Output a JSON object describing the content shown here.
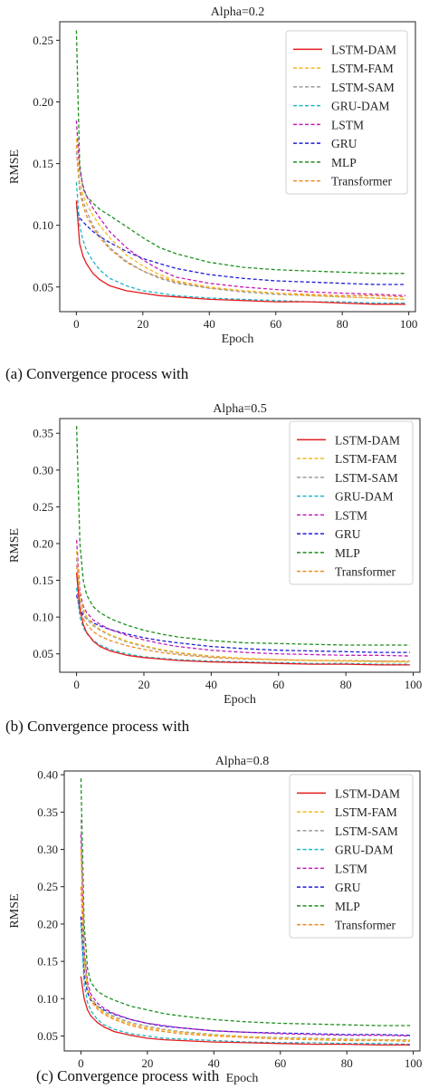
{
  "series_styles": [
    {
      "name": "LSTM-DAM",
      "color": "#e41a1c",
      "dash": "solid"
    },
    {
      "name": "LSTM-FAM",
      "color": "#f5b81b",
      "dash": "dashed"
    },
    {
      "name": "LSTM-SAM",
      "color": "#9c9c9c",
      "dash": "dashed"
    },
    {
      "name": "GRU-DAM",
      "color": "#1bb7c9",
      "dash": "dashed"
    },
    {
      "name": "LSTM",
      "color": "#c21cb8",
      "dash": "dashed"
    },
    {
      "name": "GRU",
      "color": "#1f1fd6",
      "dash": "dashed"
    },
    {
      "name": "MLP",
      "color": "#1f8f1f",
      "dash": "dashed"
    },
    {
      "name": "Transformer",
      "color": "#f08a24",
      "dash": "dashed"
    }
  ],
  "panels": [
    {
      "caption": "(a) Convergence process with"
    },
    {
      "caption": "(b) Convergence process with"
    },
    {
      "caption": "(c) Convergence process with"
    }
  ],
  "chart_data": [
    {
      "type": "line",
      "title": "Alpha=0.2",
      "xlabel": "Epoch",
      "ylabel": "RMSE",
      "xlim": [
        -5,
        102
      ],
      "ylim": [
        0.03,
        0.265
      ],
      "xticks": [
        0,
        20,
        40,
        60,
        80,
        100
      ],
      "yticks": [
        0.05,
        0.1,
        0.15,
        0.2,
        0.25
      ],
      "ytick_labels": [
        "0.05",
        "0.10",
        "0.15",
        "0.20",
        "0.25"
      ],
      "legend_position": "top-right",
      "grid": false,
      "x": [
        0,
        1,
        2,
        3,
        5,
        7,
        10,
        15,
        20,
        25,
        30,
        40,
        50,
        60,
        70,
        80,
        90,
        99
      ],
      "series": [
        {
          "name": "LSTM-DAM",
          "values": [
            0.12,
            0.085,
            0.075,
            0.069,
            0.061,
            0.056,
            0.051,
            0.047,
            0.045,
            0.043,
            0.042,
            0.04,
            0.039,
            0.038,
            0.038,
            0.037,
            0.036,
            0.036
          ]
        },
        {
          "name": "LSTM-FAM",
          "values": [
            0.17,
            0.135,
            0.125,
            0.118,
            0.108,
            0.1,
            0.09,
            0.076,
            0.067,
            0.06,
            0.055,
            0.05,
            0.047,
            0.045,
            0.043,
            0.042,
            0.041,
            0.04
          ]
        },
        {
          "name": "LSTM-SAM",
          "values": [
            0.16,
            0.13,
            0.12,
            0.112,
            0.1,
            0.092,
            0.082,
            0.071,
            0.063,
            0.057,
            0.053,
            0.049,
            0.046,
            0.044,
            0.043,
            0.042,
            0.041,
            0.04
          ]
        },
        {
          "name": "GRU-DAM",
          "values": [
            0.135,
            0.1,
            0.088,
            0.08,
            0.071,
            0.064,
            0.057,
            0.051,
            0.047,
            0.045,
            0.043,
            0.041,
            0.04,
            0.039,
            0.038,
            0.038,
            0.037,
            0.037
          ]
        },
        {
          "name": "LSTM",
          "values": [
            0.185,
            0.145,
            0.132,
            0.124,
            0.114,
            0.106,
            0.095,
            0.082,
            0.072,
            0.064,
            0.058,
            0.053,
            0.05,
            0.048,
            0.046,
            0.045,
            0.044,
            0.043
          ]
        },
        {
          "name": "GRU",
          "values": [
            0.115,
            0.106,
            0.103,
            0.1,
            0.095,
            0.091,
            0.086,
            0.079,
            0.073,
            0.069,
            0.065,
            0.06,
            0.057,
            0.055,
            0.054,
            0.053,
            0.052,
            0.052
          ]
        },
        {
          "name": "MLP",
          "values": [
            0.258,
            0.15,
            0.13,
            0.124,
            0.118,
            0.113,
            0.108,
            0.099,
            0.09,
            0.082,
            0.077,
            0.07,
            0.066,
            0.064,
            0.063,
            0.062,
            0.061,
            0.061
          ]
        },
        {
          "name": "Transformer",
          "values": [
            0.165,
            0.128,
            0.116,
            0.108,
            0.098,
            0.09,
            0.081,
            0.07,
            0.063,
            0.058,
            0.054,
            0.049,
            0.047,
            0.045,
            0.044,
            0.043,
            0.043,
            0.042
          ]
        }
      ]
    },
    {
      "type": "line",
      "title": "Alpha=0.5",
      "xlabel": "Epoch",
      "ylabel": "RMSE",
      "xlim": [
        -5,
        102
      ],
      "ylim": [
        0.025,
        0.37
      ],
      "xticks": [
        0,
        20,
        40,
        60,
        80,
        100
      ],
      "yticks": [
        0.05,
        0.1,
        0.15,
        0.2,
        0.25,
        0.3,
        0.35
      ],
      "ytick_labels": [
        "0.05",
        "0.10",
        "0.15",
        "0.20",
        "0.25",
        "0.30",
        "0.35"
      ],
      "legend_position": "top-right",
      "grid": false,
      "x": [
        0,
        1,
        2,
        3,
        5,
        7,
        10,
        15,
        20,
        25,
        30,
        40,
        50,
        60,
        70,
        80,
        90,
        99
      ],
      "series": [
        {
          "name": "LSTM-DAM",
          "values": [
            0.16,
            0.11,
            0.09,
            0.079,
            0.067,
            0.06,
            0.054,
            0.048,
            0.045,
            0.043,
            0.041,
            0.039,
            0.038,
            0.037,
            0.036,
            0.036,
            0.035,
            0.035
          ]
        },
        {
          "name": "LSTM-FAM",
          "values": [
            0.19,
            0.13,
            0.11,
            0.1,
            0.09,
            0.083,
            0.076,
            0.067,
            0.061,
            0.056,
            0.052,
            0.047,
            0.044,
            0.042,
            0.041,
            0.04,
            0.039,
            0.039
          ]
        },
        {
          "name": "LSTM-SAM",
          "values": [
            0.18,
            0.125,
            0.106,
            0.097,
            0.088,
            0.082,
            0.075,
            0.066,
            0.06,
            0.055,
            0.051,
            0.046,
            0.044,
            0.042,
            0.041,
            0.04,
            0.04,
            0.039
          ]
        },
        {
          "name": "GRU-DAM",
          "values": [
            0.14,
            0.1,
            0.086,
            0.078,
            0.068,
            0.062,
            0.056,
            0.05,
            0.046,
            0.044,
            0.042,
            0.04,
            0.039,
            0.038,
            0.037,
            0.037,
            0.036,
            0.036
          ]
        },
        {
          "name": "LSTM",
          "values": [
            0.205,
            0.135,
            0.115,
            0.106,
            0.096,
            0.09,
            0.083,
            0.075,
            0.069,
            0.064,
            0.06,
            0.055,
            0.052,
            0.05,
            0.049,
            0.048,
            0.048,
            0.047
          ]
        },
        {
          "name": "GRU",
          "values": [
            0.13,
            0.11,
            0.102,
            0.098,
            0.092,
            0.088,
            0.083,
            0.077,
            0.072,
            0.068,
            0.065,
            0.06,
            0.057,
            0.055,
            0.054,
            0.053,
            0.052,
            0.052
          ]
        },
        {
          "name": "MLP",
          "values": [
            0.36,
            0.2,
            0.15,
            0.13,
            0.114,
            0.106,
            0.098,
            0.089,
            0.082,
            0.077,
            0.073,
            0.068,
            0.065,
            0.064,
            0.063,
            0.062,
            0.062,
            0.062
          ]
        },
        {
          "name": "Transformer",
          "values": [
            0.17,
            0.115,
            0.098,
            0.09,
            0.08,
            0.074,
            0.068,
            0.061,
            0.056,
            0.052,
            0.049,
            0.045,
            0.043,
            0.042,
            0.041,
            0.041,
            0.04,
            0.04
          ]
        }
      ]
    },
    {
      "type": "line",
      "title": "Alpha=0.8",
      "xlabel": "Epoch",
      "ylabel": "RMSE",
      "xlim": [
        -5,
        102
      ],
      "ylim": [
        0.03,
        0.405
      ],
      "xticks": [
        0,
        20,
        40,
        60,
        80,
        100
      ],
      "yticks": [
        0.05,
        0.1,
        0.15,
        0.2,
        0.25,
        0.3,
        0.35,
        0.4
      ],
      "ytick_labels": [
        "0.05",
        "0.10",
        "0.15",
        "0.20",
        "0.25",
        "0.30",
        "0.35",
        "0.40"
      ],
      "legend_position": "top-right",
      "grid": false,
      "x": [
        0,
        1,
        2,
        3,
        5,
        7,
        10,
        15,
        20,
        25,
        30,
        40,
        50,
        60,
        70,
        80,
        90,
        99
      ],
      "series": [
        {
          "name": "LSTM-DAM",
          "values": [
            0.13,
            0.1,
            0.085,
            0.077,
            0.068,
            0.062,
            0.056,
            0.051,
            0.047,
            0.045,
            0.044,
            0.042,
            0.041,
            0.04,
            0.039,
            0.039,
            0.038,
            0.038
          ]
        },
        {
          "name": "LSTM-FAM",
          "values": [
            0.3,
            0.15,
            0.115,
            0.1,
            0.088,
            0.081,
            0.074,
            0.066,
            0.061,
            0.058,
            0.055,
            0.051,
            0.049,
            0.047,
            0.046,
            0.045,
            0.045,
            0.044
          ]
        },
        {
          "name": "LSTM-SAM",
          "values": [
            0.34,
            0.16,
            0.118,
            0.102,
            0.09,
            0.083,
            0.076,
            0.068,
            0.063,
            0.059,
            0.056,
            0.052,
            0.049,
            0.048,
            0.047,
            0.046,
            0.045,
            0.045
          ]
        },
        {
          "name": "GRU-DAM",
          "values": [
            0.2,
            0.12,
            0.095,
            0.084,
            0.072,
            0.065,
            0.059,
            0.053,
            0.05,
            0.047,
            0.046,
            0.044,
            0.042,
            0.041,
            0.041,
            0.04,
            0.04,
            0.039
          ]
        },
        {
          "name": "LSTM",
          "values": [
            0.32,
            0.165,
            0.122,
            0.106,
            0.094,
            0.087,
            0.08,
            0.072,
            0.067,
            0.064,
            0.061,
            0.057,
            0.055,
            0.053,
            0.052,
            0.051,
            0.051,
            0.05
          ]
        },
        {
          "name": "GRU",
          "values": [
            0.21,
            0.13,
            0.108,
            0.098,
            0.09,
            0.085,
            0.079,
            0.072,
            0.067,
            0.063,
            0.061,
            0.057,
            0.055,
            0.054,
            0.053,
            0.052,
            0.052,
            0.051
          ]
        },
        {
          "name": "MLP",
          "values": [
            0.395,
            0.2,
            0.14,
            0.122,
            0.11,
            0.104,
            0.098,
            0.09,
            0.085,
            0.08,
            0.077,
            0.072,
            0.069,
            0.067,
            0.066,
            0.065,
            0.064,
            0.064
          ]
        },
        {
          "name": "Transformer",
          "values": [
            0.25,
            0.14,
            0.11,
            0.097,
            0.086,
            0.079,
            0.072,
            0.064,
            0.059,
            0.056,
            0.053,
            0.05,
            0.048,
            0.046,
            0.045,
            0.044,
            0.044,
            0.043
          ]
        }
      ]
    }
  ]
}
